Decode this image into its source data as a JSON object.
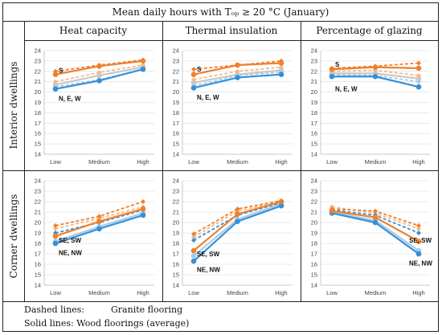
{
  "title": "Mean daily hours with Tₒₚ ≥ 20 °C (January)",
  "columns": [
    "Heat capacity",
    "Thermal insulation",
    "Percentage of glazing"
  ],
  "rows": [
    "Interior dwellings",
    "Corner dwellings"
  ],
  "legend": {
    "dashed_label": "Dashed lines:",
    "dashed_value": "Granite flooring",
    "solid_label": "Solid lines: Wood floorings (average)"
  },
  "colors": {
    "south": "#f07f2c",
    "north": "#3590d8",
    "other_south": "#f5b885",
    "other_north": "#a9cbe8",
    "gray": "#c8c8c8"
  },
  "chart_data": [
    {
      "type": "line",
      "row": "Interior dwellings",
      "column": "Heat capacity",
      "categories": [
        "Low",
        "Medium",
        "High"
      ],
      "ylim": [
        14,
        24
      ],
      "annotations": [
        {
          "text": "S",
          "x": 0,
          "y": 22.1
        },
        {
          "text": "N, E, W",
          "x": 0,
          "y": 19.4
        }
      ],
      "series": [
        {
          "group": "south",
          "dashed": true,
          "values": [
            22.0,
            22.6,
            23.1
          ]
        },
        {
          "group": "south",
          "dashed": false,
          "values": [
            21.7,
            22.5,
            23.0
          ]
        },
        {
          "group": "other_south",
          "dashed": true,
          "values": [
            21.0,
            21.9,
            22.6
          ]
        },
        {
          "group": "gray",
          "dashed": false,
          "values": [
            20.7,
            21.6,
            22.4
          ]
        },
        {
          "group": "other_north",
          "dashed": true,
          "values": [
            20.5,
            21.2,
            22.2
          ]
        },
        {
          "group": "north",
          "dashed": false,
          "values": [
            20.3,
            21.1,
            22.2
          ]
        }
      ]
    },
    {
      "type": "line",
      "row": "Interior dwellings",
      "column": "Thermal insulation",
      "categories": [
        "Low",
        "Medium",
        "High"
      ],
      "ylim": [
        14,
        24
      ],
      "annotations": [
        {
          "text": "S",
          "x": 0,
          "y": 22.2
        },
        {
          "text": "N, E, W",
          "x": 0,
          "y": 19.5
        }
      ],
      "series": [
        {
          "group": "south",
          "dashed": true,
          "values": [
            22.2,
            22.6,
            23.0
          ]
        },
        {
          "group": "south",
          "dashed": false,
          "values": [
            21.7,
            22.6,
            22.8
          ]
        },
        {
          "group": "other_south",
          "dashed": true,
          "values": [
            21.2,
            22.0,
            22.4
          ]
        },
        {
          "group": "gray",
          "dashed": false,
          "values": [
            20.9,
            21.7,
            22.1
          ]
        },
        {
          "group": "other_north",
          "dashed": true,
          "values": [
            20.6,
            21.6,
            21.9
          ]
        },
        {
          "group": "north",
          "dashed": false,
          "values": [
            20.4,
            21.4,
            21.7
          ]
        }
      ]
    },
    {
      "type": "line",
      "row": "Interior dwellings",
      "column": "Percentage of glazing",
      "categories": [
        "Low",
        "Medium",
        "High"
      ],
      "ylim": [
        14,
        24
      ],
      "annotations": [
        {
          "text": "S",
          "x": 0,
          "y": 22.7
        },
        {
          "text": "N, E, W",
          "x": 0,
          "y": 20.3
        }
      ],
      "series": [
        {
          "group": "south",
          "dashed": true,
          "values": [
            22.3,
            22.5,
            22.8
          ]
        },
        {
          "group": "south",
          "dashed": false,
          "values": [
            22.2,
            22.4,
            22.3
          ]
        },
        {
          "group": "other_south",
          "dashed": true,
          "values": [
            22.0,
            22.1,
            21.6
          ]
        },
        {
          "group": "gray",
          "dashed": false,
          "values": [
            21.8,
            21.8,
            21.3
          ]
        },
        {
          "group": "other_north",
          "dashed": true,
          "values": [
            21.7,
            21.6,
            21.0
          ]
        },
        {
          "group": "north",
          "dashed": false,
          "values": [
            21.5,
            21.5,
            20.5
          ]
        }
      ]
    },
    {
      "type": "line",
      "row": "Corner dwellings",
      "column": "Heat capacity",
      "categories": [
        "Low",
        "Medium",
        "High"
      ],
      "ylim": [
        14,
        24
      ],
      "annotations": [
        {
          "text": "SE, SW",
          "x": 0,
          "y": 18.3
        },
        {
          "text": "NE, NW",
          "x": 0,
          "y": 17.1
        }
      ],
      "series": [
        {
          "group": "south",
          "dashed": true,
          "values": [
            19.7,
            20.6,
            22.0
          ]
        },
        {
          "group": "south",
          "dashed": false,
          "values": [
            18.7,
            20.1,
            21.3
          ]
        },
        {
          "group": "other_south",
          "dashed": true,
          "values": [
            19.4,
            20.4,
            21.5
          ]
        },
        {
          "group": "north",
          "dashed": true,
          "values": [
            19.0,
            20.0,
            21.2
          ]
        },
        {
          "group": "other_north",
          "dashed": false,
          "values": [
            18.2,
            19.6,
            20.9
          ]
        },
        {
          "group": "north",
          "dashed": false,
          "values": [
            18.0,
            19.4,
            20.7
          ]
        }
      ]
    },
    {
      "type": "line",
      "row": "Corner dwellings",
      "column": "Thermal insulation",
      "categories": [
        "Low",
        "Medium",
        "High"
      ],
      "ylim": [
        14,
        24
      ],
      "annotations": [
        {
          "text": "SE, SW",
          "x": 0,
          "y": 17.0
        },
        {
          "text": "NE, NW",
          "x": 0,
          "y": 15.5
        }
      ],
      "series": [
        {
          "group": "south",
          "dashed": true,
          "values": [
            18.9,
            21.3,
            22.1
          ]
        },
        {
          "group": "south",
          "dashed": false,
          "values": [
            17.3,
            20.8,
            22.0
          ]
        },
        {
          "group": "other_south",
          "dashed": true,
          "values": [
            18.6,
            21.1,
            22.0
          ]
        },
        {
          "group": "north",
          "dashed": true,
          "values": [
            18.3,
            20.7,
            21.9
          ]
        },
        {
          "group": "other_north",
          "dashed": false,
          "values": [
            16.8,
            20.3,
            21.8
          ]
        },
        {
          "group": "north",
          "dashed": false,
          "values": [
            16.3,
            20.1,
            21.6
          ]
        }
      ]
    },
    {
      "type": "line",
      "row": "Corner dwellings",
      "column": "Percentage of glazing",
      "categories": [
        "Low",
        "Medium",
        "High"
      ],
      "ylim": [
        14,
        24
      ],
      "annotations": [
        {
          "text": "SE, SW",
          "x": 2,
          "y": 18.3
        },
        {
          "text": "NE, NW",
          "x": 2,
          "y": 16.1
        }
      ],
      "series": [
        {
          "group": "south",
          "dashed": true,
          "values": [
            21.3,
            21.1,
            19.7
          ]
        },
        {
          "group": "south",
          "dashed": false,
          "values": [
            21.1,
            20.5,
            18.2
          ]
        },
        {
          "group": "other_south",
          "dashed": true,
          "values": [
            21.5,
            20.9,
            19.4
          ]
        },
        {
          "group": "north",
          "dashed": true,
          "values": [
            21.2,
            20.7,
            19.0
          ]
        },
        {
          "group": "other_north",
          "dashed": false,
          "values": [
            21.0,
            20.2,
            17.3
          ]
        },
        {
          "group": "north",
          "dashed": false,
          "values": [
            20.9,
            20.0,
            17.0
          ]
        }
      ]
    }
  ]
}
